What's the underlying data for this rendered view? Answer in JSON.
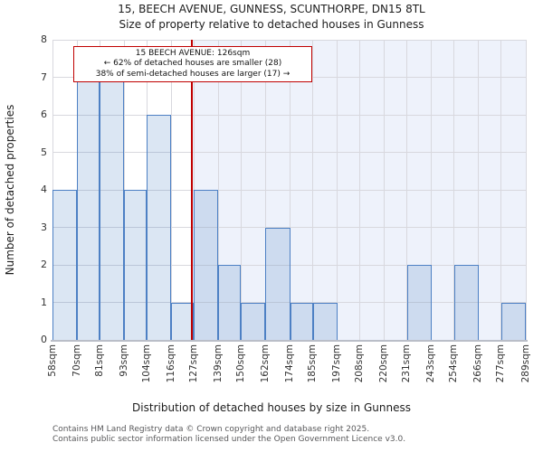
{
  "title": "15, BEECH AVENUE, GUNNESS, SCUNTHORPE, DN15 8TL",
  "subtitle": "Size of property relative to detached houses in Gunness",
  "annotation": {
    "line1": "15 BEECH AVENUE: 126sqm",
    "line2": "← 62% of detached houses are smaller (28)",
    "line3": "38% of semi-detached houses are larger (17) →"
  },
  "footer": {
    "line1": "Contains HM Land Registry data © Crown copyright and database right 2025.",
    "line2": "Contains public sector information licensed under the Open Government Licence v3.0."
  },
  "chart_data": {
    "type": "bar",
    "title": "15, BEECH AVENUE, GUNNESS, SCUNTHORPE, DN15 8TL — Size of property relative to detached houses in Gunness",
    "xlabel": "Distribution of detached houses by size in Gunness",
    "ylabel": "Number of detached properties",
    "bin_edges_sqm": [
      58,
      70,
      81,
      93,
      104,
      116,
      127,
      139,
      150,
      162,
      174,
      185,
      197,
      208,
      220,
      231,
      243,
      254,
      266,
      277,
      289
    ],
    "tick_labels": [
      "58sqm",
      "70sqm",
      "81sqm",
      "93sqm",
      "104sqm",
      "116sqm",
      "127sqm",
      "139sqm",
      "150sqm",
      "162sqm",
      "174sqm",
      "185sqm",
      "197sqm",
      "208sqm",
      "220sqm",
      "231sqm",
      "243sqm",
      "254sqm",
      "266sqm",
      "277sqm",
      "289sqm"
    ],
    "values": [
      4,
      7,
      7,
      4,
      6,
      1,
      4,
      2,
      1,
      3,
      1,
      1,
      0,
      0,
      0,
      2,
      0,
      2,
      0,
      1
    ],
    "ylim": [
      0,
      8
    ],
    "yticks": [
      0,
      1,
      2,
      3,
      4,
      5,
      6,
      7,
      8
    ],
    "grid": true,
    "legend": "none",
    "marker_value_sqm": 126,
    "marker_color": "#c00000",
    "bar_fill": "#dbe6f5",
    "bar_border": "#4d80c4",
    "shade_right_of_marker": "#eef2fb",
    "gridline_color": "#d8d8de"
  }
}
